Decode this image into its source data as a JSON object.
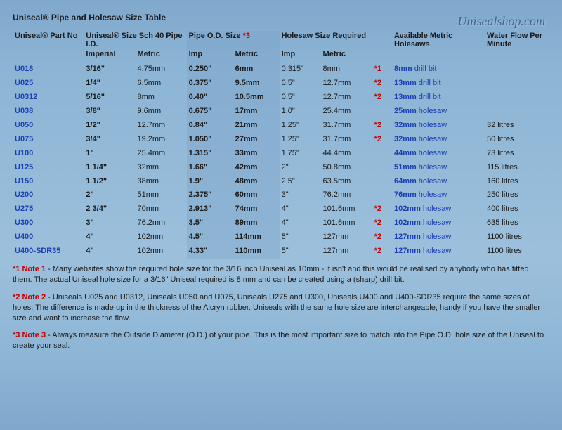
{
  "watermark": "Unisealshop.com",
  "title": "Uniseal® Pipe and Holesaw Size Table",
  "headers": {
    "part": "Uniseal® Part No",
    "size": "Uniseal® Size Sch 40 Pipe I.D.",
    "od": "Pipe O.D. Size ",
    "od_note": "*3",
    "holesaw": "Holesaw Size Required",
    "avail": "Available Metric Holesaws",
    "flow": "Water Flow Per Minute",
    "imp": "Imperial",
    "met": "Metric",
    "imp_s": "Imp",
    "met_s": "Metric"
  },
  "rows": [
    {
      "part": "U018",
      "simp": "3/16\"",
      "smet": "4.75mm",
      "odimp": "0.250\"",
      "odmet": "6mm",
      "himp": "0.315\"",
      "hmet": "8mm",
      "nref": "*1",
      "avail_b": "8mm",
      "avail_t": " drill bit",
      "flow": ""
    },
    {
      "part": "U025",
      "simp": "1/4\"",
      "smet": "6.5mm",
      "odimp": "0.375\"",
      "odmet": "9.5mm",
      "himp": "0.5\"",
      "hmet": "12.7mm",
      "nref": "*2",
      "avail_b": "13mm",
      "avail_t": " drill bit",
      "flow": ""
    },
    {
      "part": "U0312",
      "simp": "5/16\"",
      "smet": "8mm",
      "odimp": "0.40\"",
      "odmet": "10.5mm",
      "himp": "0.5\"",
      "hmet": "12.7mm",
      "nref": "*2",
      "avail_b": "13mm",
      "avail_t": " drill bit",
      "flow": ""
    },
    {
      "part": "U038",
      "simp": "3/8\"",
      "smet": "9.6mm",
      "odimp": "0.675\"",
      "odmet": "17mm",
      "himp": "1.0\"",
      "hmet": "25.4mm",
      "nref": "",
      "avail_b": "25mm",
      "avail_t": " holesaw",
      "flow": ""
    },
    {
      "part": "U050",
      "simp": "1/2\"",
      "smet": "12.7mm",
      "odimp": "0.84\"",
      "odmet": "21mm",
      "himp": "1.25\"",
      "hmet": "31.7mm",
      "nref": "*2",
      "avail_b": "32mm",
      "avail_t": " holesaw",
      "flow": "32 litres"
    },
    {
      "part": "U075",
      "simp": "3/4\"",
      "smet": "19.2mm",
      "odimp": "1.050\"",
      "odmet": "27mm",
      "himp": "1.25\"",
      "hmet": "31.7mm",
      "nref": "*2",
      "avail_b": "32mm",
      "avail_t": " holesaw",
      "flow": "50 litres"
    },
    {
      "part": "U100",
      "simp": "1\"",
      "smet": "25.4mm",
      "odimp": "1.315\"",
      "odmet": "33mm",
      "himp": "1.75\"",
      "hmet": "44.4mm",
      "nref": "",
      "avail_b": "44mm",
      "avail_t": " holesaw",
      "flow": "73 litres"
    },
    {
      "part": "U125",
      "simp": "1 1/4\"",
      "smet": "32mm",
      "odimp": "1.66\"",
      "odmet": "42mm",
      "himp": "2\"",
      "hmet": "50.8mm",
      "nref": "",
      "avail_b": "51mm",
      "avail_t": " holesaw",
      "flow": "115 litres"
    },
    {
      "part": "U150",
      "simp": "1 1/2\"",
      "smet": "38mm",
      "odimp": "1.9\"",
      "odmet": "48mm",
      "himp": "2.5\"",
      "hmet": "63.5mm",
      "nref": "",
      "avail_b": "64mm",
      "avail_t": " holesaw",
      "flow": "160 litres"
    },
    {
      "part": "U200",
      "simp": "2\"",
      "smet": "51mm",
      "odimp": "2.375\"",
      "odmet": "60mm",
      "himp": "3\"",
      "hmet": "76.2mm",
      "nref": "",
      "avail_b": "76mm",
      "avail_t": " holesaw",
      "flow": "250 litres"
    },
    {
      "part": "U275",
      "simp": "2 3/4\"",
      "smet": "70mm",
      "odimp": "2.913\"",
      "odmet": "74mm",
      "himp": "4\"",
      "hmet": "101.6mm",
      "nref": "*2",
      "avail_b": "102mm",
      "avail_t": " holesaw",
      "flow": "400 litres"
    },
    {
      "part": "U300",
      "simp": "3\"",
      "smet": "76.2mm",
      "odimp": "3.5\"",
      "odmet": "89mm",
      "himp": "4\"",
      "hmet": "101.6mm",
      "nref": "*2",
      "avail_b": "102mm",
      "avail_t": " holesaw",
      "flow": "635 litres"
    },
    {
      "part": "U400",
      "simp": "4\"",
      "smet": "102mm",
      "odimp": "4.5\"",
      "odmet": "114mm",
      "himp": "5\"",
      "hmet": "127mm",
      "nref": "*2",
      "avail_b": "127mm",
      "avail_t": " holesaw",
      "flow": "1100 litres"
    },
    {
      "part": "U400-SDR35",
      "simp": "4\"",
      "smet": "102mm",
      "odimp": "4.33\"",
      "odmet": "110mm",
      "himp": "5\"",
      "hmet": "127mm",
      "nref": "*2",
      "avail_b": "127mm",
      "avail_t": " holesaw",
      "flow": "1100 litres"
    }
  ],
  "notes": {
    "n1_label": "*1 Note 1",
    "n1_text": " - Many websites show the required hole size for the 3/16 inch Uniseal as 10mm - it isn't and this would be realised by anybody who has fitted them. The actual Uniseal hole size for a 3/16\" Uniseal required is 8 mm and can be created using a (sharp) drill bit.",
    "n2_label": "*2 Note 2",
    "n2_text": " - Uniseals U025 and U0312, Uniseals U050 and U075, Uniseals U275 and U300, Uniseals U400 and U400-SDR35 require the same sizes of holes. The difference is made up in the thickness of the Alcryn rubber. Uniseals with the same hole size are interchangeable, handy if you have the smaller size and want to increase the flow.",
    "n3_label": "*3 Note 3",
    "n3_text": " - Always measure the Outside Diameter (O.D.) of your pipe. This is the most important size to match into the Pipe O.D. hole size of the Uniseal to create your seal."
  }
}
